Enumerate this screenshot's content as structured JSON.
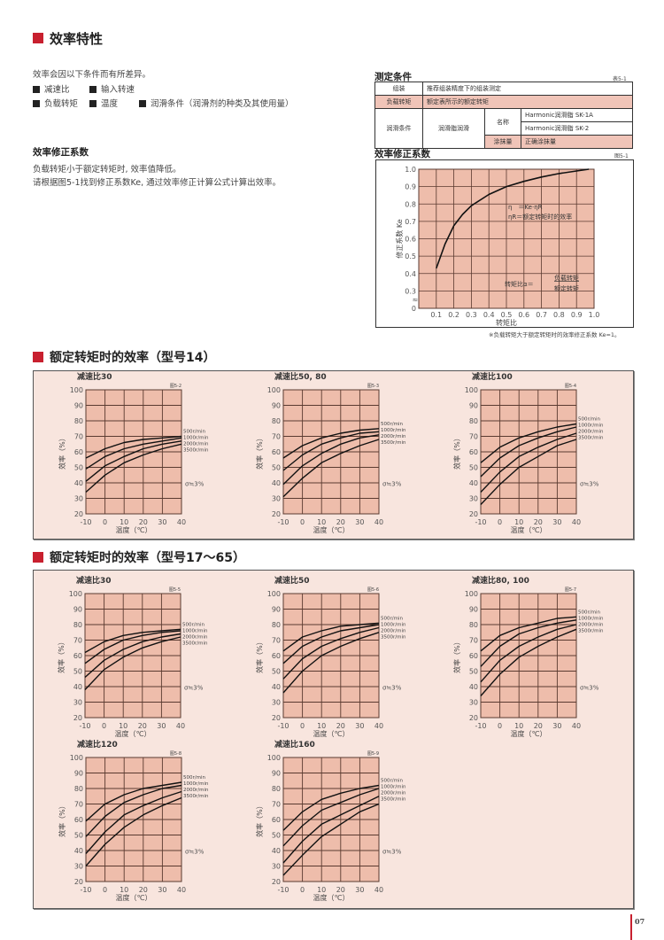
{
  "section1": {
    "title": "效率特性",
    "intro": "效率会因以下条件而有所差异。",
    "factors": [
      "减速比",
      "输入转速",
      "负载转矩",
      "温度",
      "润滑条件（润滑剂的种类及其使用量）"
    ],
    "subheading": "效率修正系数",
    "desc1": "负载转矩小于额定转矩时, 效率值降低。",
    "desc2": "请根据图5-1找到修正系数Ke, 通过效率修正计算公式计算出效率。"
  },
  "conditions": {
    "title": "测定条件",
    "label": "表5-1",
    "rows": {
      "assembly_label": "组装",
      "assembly_value": "推荐组装精度下的组装测定",
      "load_label": "负载转矩",
      "load_value": "额定表所示的额定转矩",
      "lube_label": "润滑条件",
      "lube_type": "润滑脂润滑",
      "name_label": "名称",
      "name_1": "Harmonic润滑脂 SK-1A",
      "name_2": "Harmonic润滑脂 SK-2",
      "amount_label": "涂抹量",
      "amount_value": "正确涂抹量"
    }
  },
  "ke_chart": {
    "title": "效率修正系数",
    "fig_label": "图5-1",
    "ylabel": "修正系数 Ke",
    "xlabel": "转矩比",
    "formula1": "η　＝Ke·ηR",
    "formula2": "ηR＝额定转矩时的效率",
    "ratio_label": "转矩比α＝",
    "ratio_num": "负载转矩",
    "ratio_den": "额定转矩",
    "footnote": "※负载转矩大于额定转矩时的效率修正系数 Ke=1。"
  },
  "section2": {
    "title": "额定转矩时的效率（型号14）"
  },
  "section3": {
    "title": "额定转矩时的效率（型号17～65）"
  },
  "colors": {
    "accent": "#c8202f",
    "plot_fill": "#eebdab",
    "panel_bg": "#f8e5de",
    "grid": "#5a3a30"
  },
  "chart_data": [
    {
      "type": "line",
      "id": "fig5-1",
      "title": "效率修正系数",
      "fig_label": "图5-1",
      "xlabel": "转矩比",
      "ylabel": "修正系数 Ke",
      "xlim": [
        0,
        1.0
      ],
      "ylim": [
        0,
        1.0
      ],
      "y_axis_break": true,
      "grid": true,
      "xticks": [
        "0.1",
        "0.2",
        "0.3",
        "0.4",
        "0.5",
        "0.6",
        "0.7",
        "0.8",
        "0.9",
        "1.0"
      ],
      "yticks": [
        "0",
        "0.3",
        "0.4",
        "0.5",
        "0.6",
        "0.7",
        "0.8",
        "0.9",
        "1.0"
      ],
      "x": [
        0.1,
        0.15,
        0.2,
        0.25,
        0.3,
        0.4,
        0.5,
        0.6,
        0.7,
        0.8,
        0.9,
        0.97
      ],
      "y": [
        0.43,
        0.57,
        0.675,
        0.74,
        0.79,
        0.855,
        0.9,
        0.93,
        0.955,
        0.975,
        0.99,
        1.0
      ]
    },
    {
      "type": "line",
      "id": "fig5-2",
      "group": "model14",
      "title": "减速比30",
      "fig_label": "图5-2",
      "xlabel": "温度（℃）",
      "ylabel": "效率（%）",
      "xlim": [
        -10,
        40
      ],
      "ylim": [
        20,
        100
      ],
      "grid": true,
      "x": [
        -10,
        0,
        10,
        20,
        30,
        40
      ],
      "note": "σ≒3%",
      "series": [
        {
          "name": "500r/min",
          "values": [
            56,
            62,
            66,
            68,
            69,
            70
          ]
        },
        {
          "name": "1000r/min",
          "values": [
            49,
            57,
            62,
            65,
            67,
            69
          ]
        },
        {
          "name": "2000r/min",
          "values": [
            41,
            51,
            57,
            62,
            65,
            67
          ]
        },
        {
          "name": "3500r/min",
          "values": [
            34,
            45,
            53,
            58,
            62,
            65
          ]
        }
      ]
    },
    {
      "type": "line",
      "id": "fig5-3",
      "group": "model14",
      "title": "减速比50, 80",
      "fig_label": "图5-3",
      "xlabel": "温度（℃）",
      "ylabel": "效率（%）",
      "xlim": [
        -10,
        40
      ],
      "ylim": [
        20,
        100
      ],
      "grid": true,
      "x": [
        -10,
        0,
        10,
        20,
        30,
        40
      ],
      "note": "σ≒3%",
      "series": [
        {
          "name": "500r/min",
          "values": [
            56,
            64,
            69,
            72,
            74,
            75
          ]
        },
        {
          "name": "1000r/min",
          "values": [
            48,
            58,
            65,
            69,
            72,
            73
          ]
        },
        {
          "name": "2000r/min",
          "values": [
            39,
            51,
            59,
            65,
            69,
            71
          ]
        },
        {
          "name": "3500r/min",
          "values": [
            31,
            43,
            53,
            59,
            64,
            68
          ]
        }
      ]
    },
    {
      "type": "line",
      "id": "fig5-4",
      "group": "model14",
      "title": "减速比100",
      "fig_label": "图5-4",
      "xlabel": "温度（℃）",
      "ylabel": "效率（%）",
      "xlim": [
        -10,
        40
      ],
      "ylim": [
        20,
        100
      ],
      "grid": true,
      "x": [
        -10,
        0,
        10,
        20,
        30,
        40
      ],
      "note": "σ≒3%",
      "series": [
        {
          "name": "500r/min",
          "values": [
            53,
            63,
            69,
            73,
            76,
            78
          ]
        },
        {
          "name": "1000r/min",
          "values": [
            44,
            56,
            64,
            69,
            73,
            76
          ]
        },
        {
          "name": "2000r/min",
          "values": [
            34,
            47,
            57,
            63,
            68,
            72
          ]
        },
        {
          "name": "3500r/min",
          "values": [
            26,
            39,
            50,
            57,
            64,
            68
          ]
        }
      ]
    },
    {
      "type": "line",
      "id": "fig5-5",
      "group": "model17-65",
      "title": "减速比30",
      "fig_label": "图5-5",
      "xlabel": "温度（℃）",
      "ylabel": "效率（%）",
      "xlim": [
        -10,
        40
      ],
      "ylim": [
        20,
        100
      ],
      "grid": true,
      "x": [
        -10,
        0,
        10,
        20,
        30,
        40
      ],
      "note": "σ≒3%",
      "series": [
        {
          "name": "500r/min",
          "values": [
            62,
            69,
            73,
            75,
            76,
            77
          ]
        },
        {
          "name": "1000r/min",
          "values": [
            55,
            64,
            70,
            73,
            75,
            76
          ]
        },
        {
          "name": "2000r/min",
          "values": [
            46,
            57,
            64,
            69,
            72,
            74
          ]
        },
        {
          "name": "3500r/min",
          "values": [
            38,
            51,
            59,
            65,
            69,
            72
          ]
        }
      ]
    },
    {
      "type": "line",
      "id": "fig5-6",
      "group": "model17-65",
      "title": "减速比50",
      "fig_label": "图5-6",
      "xlabel": "温度（℃）",
      "ylabel": "效率（%）",
      "xlim": [
        -10,
        40
      ],
      "ylim": [
        20,
        100
      ],
      "grid": true,
      "x": [
        -10,
        0,
        10,
        20,
        30,
        40
      ],
      "note": "σ≒3%",
      "series": [
        {
          "name": "500r/min",
          "values": [
            63,
            72,
            76,
            79,
            80,
            81
          ]
        },
        {
          "name": "1000r/min",
          "values": [
            55,
            66,
            72,
            76,
            78,
            80
          ]
        },
        {
          "name": "2000r/min",
          "values": [
            45,
            58,
            66,
            71,
            75,
            78
          ]
        },
        {
          "name": "3500r/min",
          "values": [
            36,
            50,
            60,
            66,
            71,
            75
          ]
        }
      ]
    },
    {
      "type": "line",
      "id": "fig5-7",
      "group": "model17-65",
      "title": "减速比80, 100",
      "fig_label": "图5-7",
      "xlabel": "温度（℃）",
      "ylabel": "效率（%）",
      "xlim": [
        -10,
        40
      ],
      "ylim": [
        20,
        100
      ],
      "grid": true,
      "x": [
        -10,
        0,
        10,
        20,
        30,
        40
      ],
      "note": "σ≒3%",
      "series": [
        {
          "name": "500r/min",
          "values": [
            63,
            73,
            78,
            81,
            84,
            85
          ]
        },
        {
          "name": "1000r/min",
          "values": [
            53,
            66,
            74,
            78,
            81,
            83
          ]
        },
        {
          "name": "2000r/min",
          "values": [
            43,
            57,
            66,
            72,
            77,
            80
          ]
        },
        {
          "name": "3500r/min",
          "values": [
            34,
            48,
            59,
            66,
            72,
            77
          ]
        }
      ]
    },
    {
      "type": "line",
      "id": "fig5-8",
      "group": "model17-65",
      "title": "减速比120",
      "fig_label": "图5-8",
      "xlabel": "温度（℃）",
      "ylabel": "效率（%）",
      "xlim": [
        -10,
        40
      ],
      "ylim": [
        20,
        100
      ],
      "grid": true,
      "x": [
        -10,
        0,
        10,
        20,
        30,
        40
      ],
      "note": "σ≒3%",
      "series": [
        {
          "name": "500r/min",
          "values": [
            59,
            70,
            76,
            80,
            82,
            84
          ]
        },
        {
          "name": "1000r/min",
          "values": [
            49,
            62,
            71,
            76,
            80,
            82
          ]
        },
        {
          "name": "2000r/min",
          "values": [
            38,
            52,
            63,
            69,
            74,
            78
          ]
        },
        {
          "name": "3500r/min",
          "values": [
            30,
            44,
            55,
            63,
            69,
            74
          ]
        }
      ]
    },
    {
      "type": "line",
      "id": "fig5-9",
      "group": "model17-65",
      "title": "减速比160",
      "fig_label": "图5-9",
      "xlabel": "温度（℃）",
      "ylabel": "效率（%）",
      "xlim": [
        -10,
        40
      ],
      "ylim": [
        20,
        100
      ],
      "grid": true,
      "x": [
        -10,
        0,
        10,
        20,
        30,
        40
      ],
      "note": "σ≒3%",
      "series": [
        {
          "name": "500r/min",
          "values": [
            53,
            65,
            73,
            77,
            80,
            82
          ]
        },
        {
          "name": "1000r/min",
          "values": [
            43,
            56,
            66,
            71,
            76,
            80
          ]
        },
        {
          "name": "2000r/min",
          "values": [
            32,
            46,
            57,
            63,
            69,
            75
          ]
        },
        {
          "name": "3500r/min",
          "values": [
            24,
            37,
            49,
            57,
            65,
            70
          ]
        }
      ]
    }
  ],
  "temp_ticks": [
    "-10",
    "0",
    "10",
    "20",
    "30",
    "40"
  ],
  "eff_ticks": [
    "20",
    "30",
    "40",
    "50",
    "60",
    "70",
    "80",
    "90",
    "100"
  ],
  "page_number": "07"
}
